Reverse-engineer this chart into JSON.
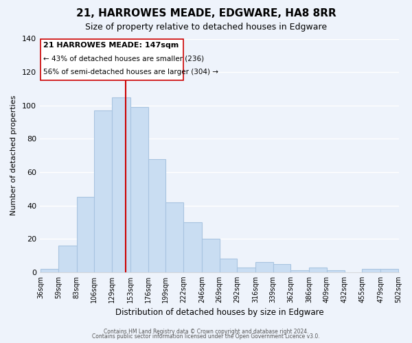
{
  "title": "21, HARROWES MEADE, EDGWARE, HA8 8RR",
  "subtitle": "Size of property relative to detached houses in Edgware",
  "xlabel": "Distribution of detached houses by size in Edgware",
  "ylabel": "Number of detached properties",
  "bin_edges": [
    36,
    59,
    83,
    106,
    129,
    153,
    176,
    199,
    222,
    246,
    269,
    292,
    316,
    339,
    362,
    386,
    409,
    432,
    455,
    479,
    502
  ],
  "bar_heights": [
    2,
    16,
    45,
    97,
    105,
    99,
    68,
    42,
    30,
    20,
    8,
    3,
    6,
    5,
    1,
    3,
    1,
    0,
    2,
    2
  ],
  "bin_labels": [
    "36sqm",
    "59sqm",
    "83sqm",
    "106sqm",
    "129sqm",
    "153sqm",
    "176sqm",
    "199sqm",
    "222sqm",
    "246sqm",
    "269sqm",
    "292sqm",
    "316sqm",
    "339sqm",
    "362sqm",
    "386sqm",
    "409sqm",
    "432sqm",
    "455sqm",
    "479sqm",
    "502sqm"
  ],
  "bar_color": "#c9ddf2",
  "bar_edge_color": "#a8c4e0",
  "vline_color": "#cc0000",
  "vline_pos": 147,
  "ylim": [
    0,
    140
  ],
  "yticks": [
    0,
    20,
    40,
    60,
    80,
    100,
    120,
    140
  ],
  "annotation_title": "21 HARROWES MEADE: 147sqm",
  "annotation_line1": "← 43% of detached houses are smaller (236)",
  "annotation_line2": "56% of semi-detached houses are larger (304) →",
  "footer1": "Contains HM Land Registry data © Crown copyright and database right 2024.",
  "footer2": "Contains public sector information licensed under the Open Government Licence v3.0.",
  "background_color": "#eef3fb"
}
